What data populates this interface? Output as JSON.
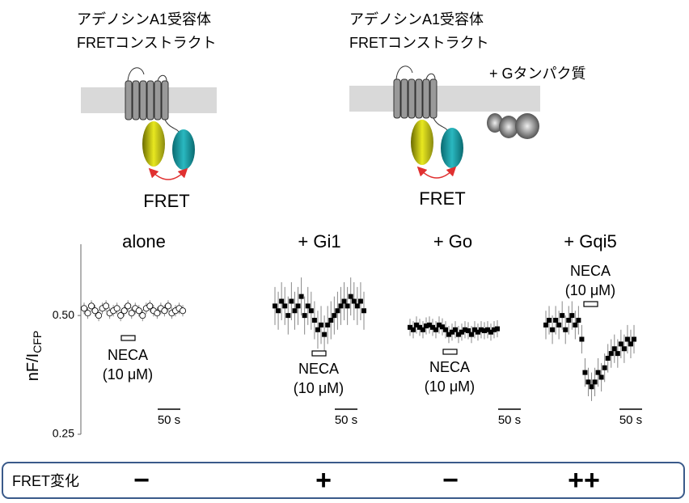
{
  "diagrams": [
    {
      "title_lines": [
        "アデノシンA1受容体",
        "FRETコンストラクト"
      ],
      "label": "FRET"
    },
    {
      "title_lines": [
        "アデノシンA1受容体",
        "FRETコンストラクト"
      ],
      "label": "FRET",
      "extra": "+ Gタンパク質"
    }
  ],
  "chart_data": {
    "type": "errorbar",
    "ylabel": "nF/I",
    "ylabel_sub": "CFP",
    "ylim": [
      0.25,
      0.65
    ],
    "yticks": [
      0.25,
      {
        "value": 0.5,
        "label": "0.50"
      }
    ],
    "series": [
      {
        "name": "alone",
        "color": "#000000",
        "marker_fill": "#ffffff",
        "values": [
          0.515,
          0.505,
          0.52,
          0.51,
          0.5,
          0.515,
          0.52,
          0.505,
          0.51,
          0.515,
          0.5,
          0.51,
          0.52,
          0.505,
          0.515,
          0.51,
          0.5,
          0.515,
          0.52,
          0.51,
          0.505,
          0.515,
          0.51,
          0.52,
          0.505,
          0.51,
          0.515,
          0.51
        ],
        "errors": [
          0.012,
          0.012,
          0.012,
          0.012,
          0.012,
          0.012,
          0.012,
          0.012,
          0.012,
          0.012,
          0.012,
          0.012,
          0.012,
          0.012,
          0.012,
          0.012,
          0.012,
          0.012,
          0.012,
          0.012,
          0.012,
          0.012,
          0.012,
          0.012,
          0.012,
          0.012,
          0.012,
          0.012
        ],
        "stimulus": [
          "NECA",
          "(10 μM)"
        ],
        "scale_bar": {
          "value": 50,
          "label": "50 s"
        }
      },
      {
        "name": "+ Gi1",
        "color": "#000000",
        "marker_fill": "#000000",
        "values": [
          0.52,
          0.51,
          0.53,
          0.52,
          0.5,
          0.53,
          0.51,
          0.52,
          0.54,
          0.5,
          0.52,
          0.51,
          0.49,
          0.47,
          0.48,
          0.46,
          0.48,
          0.49,
          0.5,
          0.51,
          0.52,
          0.53,
          0.52,
          0.54,
          0.53,
          0.52,
          0.53,
          0.51
        ],
        "errors": [
          0.04,
          0.04,
          0.04,
          0.04,
          0.04,
          0.04,
          0.04,
          0.04,
          0.04,
          0.04,
          0.04,
          0.04,
          0.04,
          0.04,
          0.04,
          0.04,
          0.04,
          0.04,
          0.04,
          0.04,
          0.04,
          0.04,
          0.04,
          0.04,
          0.04,
          0.04,
          0.04,
          0.04
        ],
        "stimulus": [
          "NECA",
          "(10 μM)"
        ],
        "scale_bar": {
          "value": 50,
          "label": "50 s"
        }
      },
      {
        "name": "+ Go",
        "color": "#000000",
        "marker_fill": "#000000",
        "values": [
          0.475,
          0.47,
          0.48,
          0.475,
          0.47,
          0.478,
          0.48,
          0.475,
          0.47,
          0.48,
          0.476,
          0.47,
          0.46,
          0.465,
          0.47,
          0.46,
          0.465,
          0.47,
          0.468,
          0.46,
          0.47,
          0.465,
          0.47,
          0.468,
          0.47,
          0.465,
          0.47,
          0.472
        ],
        "errors": [
          0.018,
          0.018,
          0.018,
          0.018,
          0.018,
          0.018,
          0.018,
          0.018,
          0.018,
          0.018,
          0.018,
          0.018,
          0.018,
          0.018,
          0.018,
          0.018,
          0.018,
          0.018,
          0.018,
          0.018,
          0.018,
          0.018,
          0.018,
          0.018,
          0.018,
          0.018,
          0.018,
          0.018
        ],
        "stimulus": [
          "NECA",
          "(10 μM)"
        ],
        "scale_bar": {
          "value": 50,
          "label": "50 s"
        }
      },
      {
        "name": "+ Gqi5",
        "color": "#000000",
        "marker_fill": "#000000",
        "values": [
          0.48,
          0.49,
          0.47,
          0.49,
          0.48,
          0.5,
          0.47,
          0.49,
          0.5,
          0.48,
          0.49,
          0.45,
          0.38,
          0.36,
          0.35,
          0.36,
          0.38,
          0.37,
          0.39,
          0.41,
          0.42,
          0.43,
          0.42,
          0.44,
          0.43,
          0.45,
          0.44,
          0.45
        ],
        "errors": [
          0.03,
          0.03,
          0.03,
          0.03,
          0.03,
          0.03,
          0.03,
          0.03,
          0.03,
          0.03,
          0.03,
          0.03,
          0.03,
          0.03,
          0.03,
          0.03,
          0.03,
          0.03,
          0.03,
          0.03,
          0.03,
          0.03,
          0.03,
          0.03,
          0.03,
          0.03,
          0.03,
          0.03
        ],
        "stimulus": [
          "NECA",
          "(10 μM)"
        ],
        "scale_bar": {
          "value": 50,
          "label": "50 s"
        }
      }
    ]
  },
  "summary": {
    "label": "FRET変化",
    "results": [
      "−",
      "+",
      "−",
      "++"
    ]
  }
}
